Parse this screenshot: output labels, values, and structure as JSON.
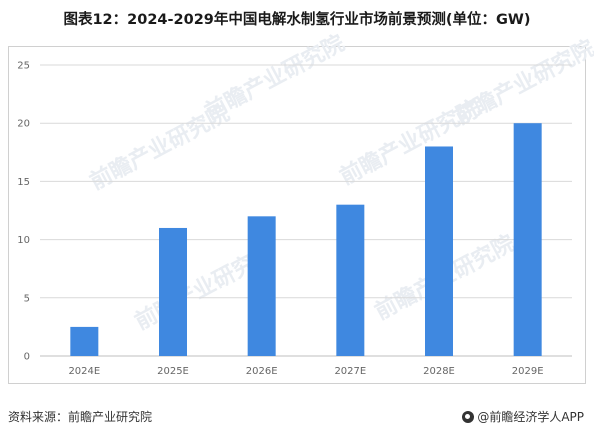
{
  "title": "图表12：2024-2029年中国电解水制氢行业市场前景预测(单位：GW)",
  "source": "资料来源：前瞻产业研究院",
  "credit": "@前瞻经济学人APP",
  "watermark": "前瞻产业研究院",
  "colors": {
    "bar": "#3f88e0",
    "grid": "#d9d9d9",
    "axis": "#bfbfbf"
  },
  "chart_data": {
    "type": "bar",
    "categories": [
      "2024E",
      "2025E",
      "2026E",
      "2027E",
      "2028E",
      "2029E"
    ],
    "values": [
      2.5,
      11,
      12,
      13,
      18,
      20
    ],
    "ylim": [
      0,
      25
    ],
    "yticks": [
      0,
      5,
      10,
      15,
      20,
      25
    ],
    "grid": true,
    "xlabel": "",
    "ylabel": ""
  }
}
